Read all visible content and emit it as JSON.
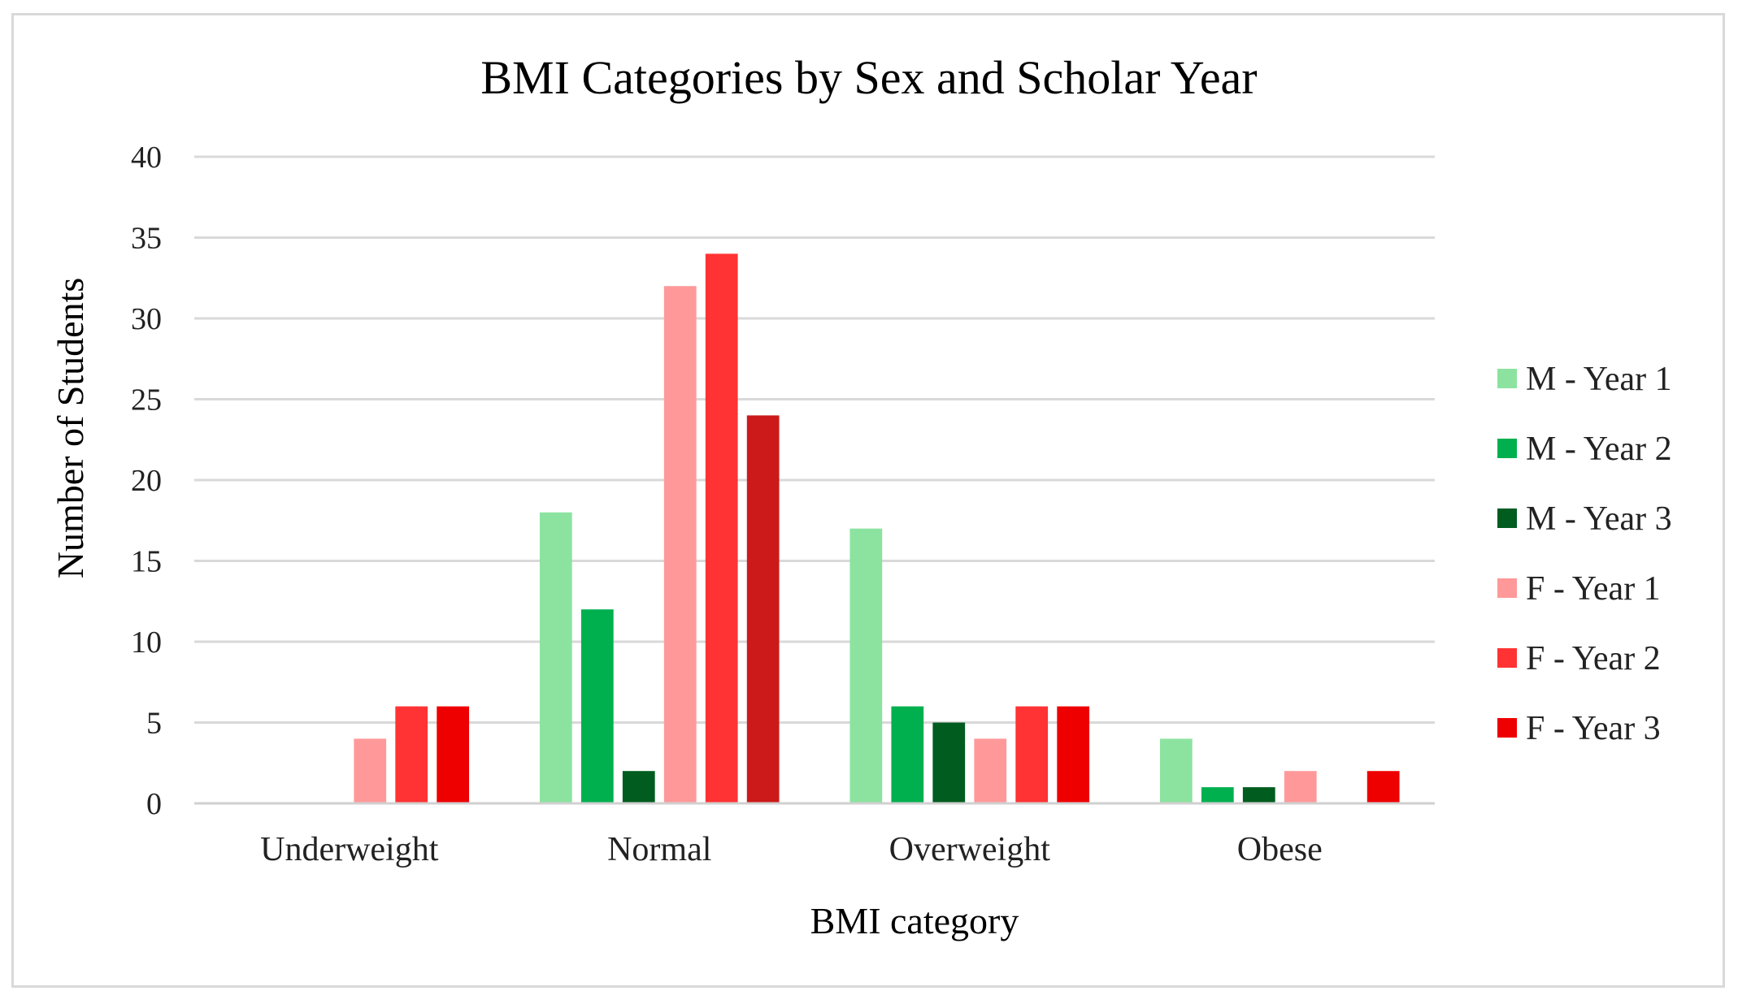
{
  "chart_data": {
    "type": "bar",
    "title": "BMI Categories by Sex and Scholar Year",
    "xlabel": "BMI category",
    "ylabel": "Number of Students",
    "categories": [
      "Underweight",
      "Normal",
      "Overweight",
      "Obese"
    ],
    "ylim": [
      0,
      40
    ],
    "yticks": [
      "0",
      "5",
      "10",
      "15",
      "20",
      "25",
      "30",
      "35",
      "40"
    ],
    "grid": true,
    "legend_position": "right",
    "series": [
      {
        "name": "M - Year 1",
        "color": "#8ce3a0",
        "values": [
          0,
          18,
          17,
          4
        ]
      },
      {
        "name": "M - Year 2",
        "color": "#00b04f",
        "values": [
          0,
          12,
          6,
          1
        ]
      },
      {
        "name": "M - Year 3",
        "color": "#005c1f",
        "values": [
          0,
          2,
          5,
          1
        ]
      },
      {
        "name": "F - Year 1",
        "color": "#ff9999",
        "values": [
          4,
          32,
          4,
          2
        ]
      },
      {
        "name": "F - Year 2",
        "color": "#ff3333",
        "values": [
          6,
          34,
          6,
          0
        ]
      },
      {
        "name": "F - Year 3",
        "color": "#ee0000",
        "values": [
          6,
          24,
          6,
          2
        ]
      }
    ],
    "point_colors": [
      {
        "category": "Normal",
        "series": "F - Year 3",
        "color": "#cc1a1a"
      }
    ]
  }
}
